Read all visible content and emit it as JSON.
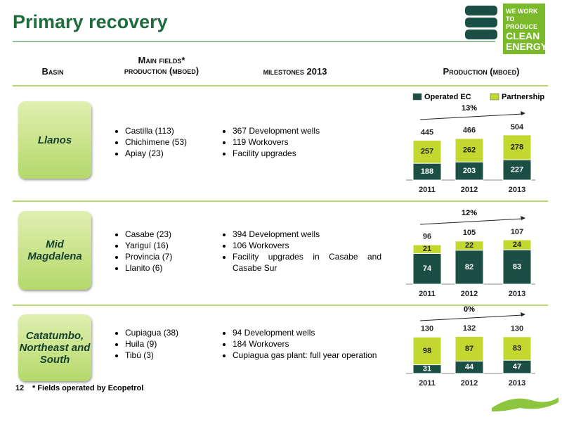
{
  "header": {
    "title": "Primary recovery",
    "logo": [
      "WE WORK",
      "TO PRODUCE",
      "CLEAN",
      "ENERGY"
    ]
  },
  "columns": {
    "basin": "Basin",
    "fields": [
      "Main fields*",
      "production (mboed)"
    ],
    "milestones": "milestones 2013",
    "production": "Production (mboed)"
  },
  "rows": [
    {
      "basin": "Llanos",
      "fields": [
        "Castilla (113)",
        "Chichimene (53)",
        "Apiay (23)"
      ],
      "milestones": [
        "367 Development wells",
        "119 Workovers",
        "Facility upgrades"
      ]
    },
    {
      "basin": "Mid Magdalena",
      "fields": [
        "Casabe (23)",
        "Yariguí (16)",
        "Provincia (7)",
        "Llanito (6)"
      ],
      "milestones": [
        "394 Development wells",
        "106 Workovers",
        "Facility upgrades in Casabe and Casabe Sur"
      ]
    },
    {
      "basin": "Catatumbo, Northeast and South",
      "fields": [
        "Cupiagua (38)",
        "Huila (9)",
        "Tibú (3)"
      ],
      "milestones": [
        "94 Development wells",
        "184 Workovers",
        "Cupiagua gas plant: full year operation"
      ]
    }
  ],
  "chart_data": [
    {
      "type": "bar",
      "stacked": true,
      "categories": [
        "2011",
        "2012",
        "2013"
      ],
      "series": [
        {
          "name": "Operated EC",
          "color": "#1b4f43",
          "values": [
            188,
            203,
            227
          ]
        },
        {
          "name": "Partnership",
          "color": "#c3d82e",
          "values": [
            257,
            262,
            278
          ]
        }
      ],
      "totals": [
        445,
        466,
        504
      ],
      "annotation": "13%"
    },
    {
      "type": "bar",
      "stacked": true,
      "categories": [
        "2011",
        "2012",
        "2013"
      ],
      "series": [
        {
          "color": "#1b4f43",
          "values": [
            74,
            82,
            83
          ]
        },
        {
          "color": "#c3d82e",
          "values": [
            21,
            22,
            24
          ]
        }
      ],
      "totals": [
        96,
        105,
        107
      ],
      "annotation": "12%"
    },
    {
      "type": "bar",
      "stacked": true,
      "categories": [
        "2011",
        "2012",
        "2013"
      ],
      "series": [
        {
          "color": "#1b4f43",
          "values": [
            31,
            44,
            47
          ]
        },
        {
          "color": "#c3d82e",
          "values": [
            98,
            87,
            83
          ]
        }
      ],
      "totals": [
        130,
        132,
        130
      ],
      "annotation": "0%"
    }
  ],
  "footer": {
    "page": "12",
    "note": "* Fields operated by Ecopetrol"
  }
}
